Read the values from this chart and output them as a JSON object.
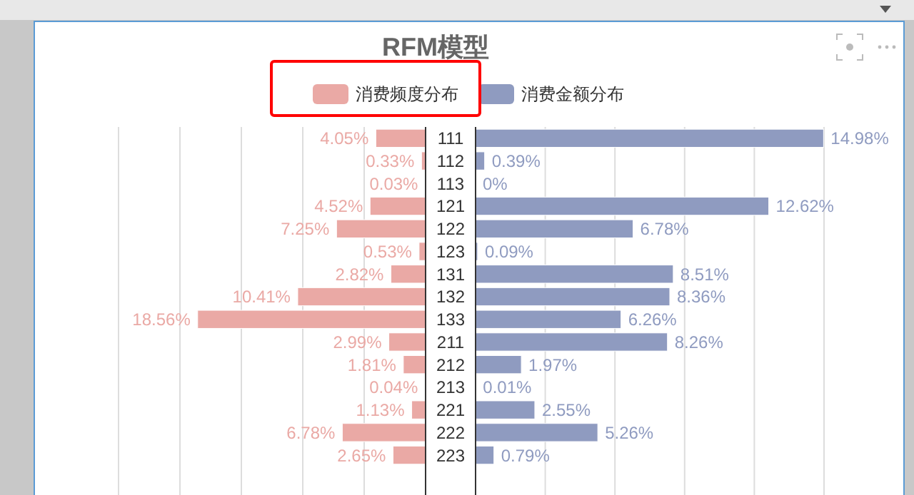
{
  "chart_data": [
    {
      "type": "bar",
      "orientation": "horizontal",
      "title": "RFM模型",
      "legend": "top",
      "grid": "x",
      "tick_labels": false,
      "categories": [
        "111",
        "112",
        "113",
        "121",
        "122",
        "123",
        "131",
        "132",
        "133",
        "211",
        "212",
        "213",
        "221",
        "222",
        "223"
      ],
      "xticks": [
        {
          "value": 25,
          "label": null
        },
        {
          "value": 20,
          "label": null
        },
        {
          "value": 15,
          "label": null
        },
        {
          "value": 10,
          "label": null
        },
        {
          "value": 5,
          "label": null
        }
      ],
      "series": [
        {
          "name": "消费频度分布",
          "color": "#eaa9a5",
          "values": [
            4.05,
            0.33,
            0.03,
            4.52,
            7.25,
            0.53,
            2.82,
            10.41,
            18.56,
            2.99,
            1.81,
            0.04,
            1.13,
            6.78,
            2.65
          ],
          "value_labels": [
            "4.05%",
            "0.33%",
            "0.03%",
            "4.52%",
            "7.25%",
            "0.53%",
            "2.82%",
            "10.41%",
            "18.56%",
            "2.99%",
            "1.81%",
            "0.04%",
            "1.13%",
            "6.78%",
            "2.65%"
          ]
        }
      ]
    },
    {
      "type": "bar",
      "orientation": "horizontal",
      "legend": "top",
      "grid": "x",
      "tick_labels": "y",
      "categories": [
        "111",
        "112",
        "113",
        "121",
        "122",
        "123",
        "131",
        "132",
        "133",
        "211",
        "212",
        "213",
        "221",
        "222",
        "223"
      ],
      "xticks": [
        {
          "value": 3,
          "label": null
        },
        {
          "value": 6,
          "label": null
        },
        {
          "value": 9,
          "label": null
        },
        {
          "value": 12,
          "label": null
        },
        {
          "value": 15,
          "label": null
        }
      ],
      "series": [
        {
          "name": "消费金额分布",
          "color": "#8f9bc0",
          "values": [
            14.98,
            0.39,
            0,
            12.62,
            6.78,
            0.09,
            8.51,
            8.36,
            6.26,
            8.26,
            1.97,
            0.01,
            2.55,
            5.26,
            0.79
          ],
          "value_labels": [
            "14.98%",
            "0.39%",
            "0%",
            "12.62%",
            "6.78%",
            "0.09%",
            "8.51%",
            "8.36%",
            "6.26%",
            "8.26%",
            "1.97%",
            "0.01%",
            "2.55%",
            "5.26%",
            "0.79%"
          ]
        }
      ]
    }
  ]
}
